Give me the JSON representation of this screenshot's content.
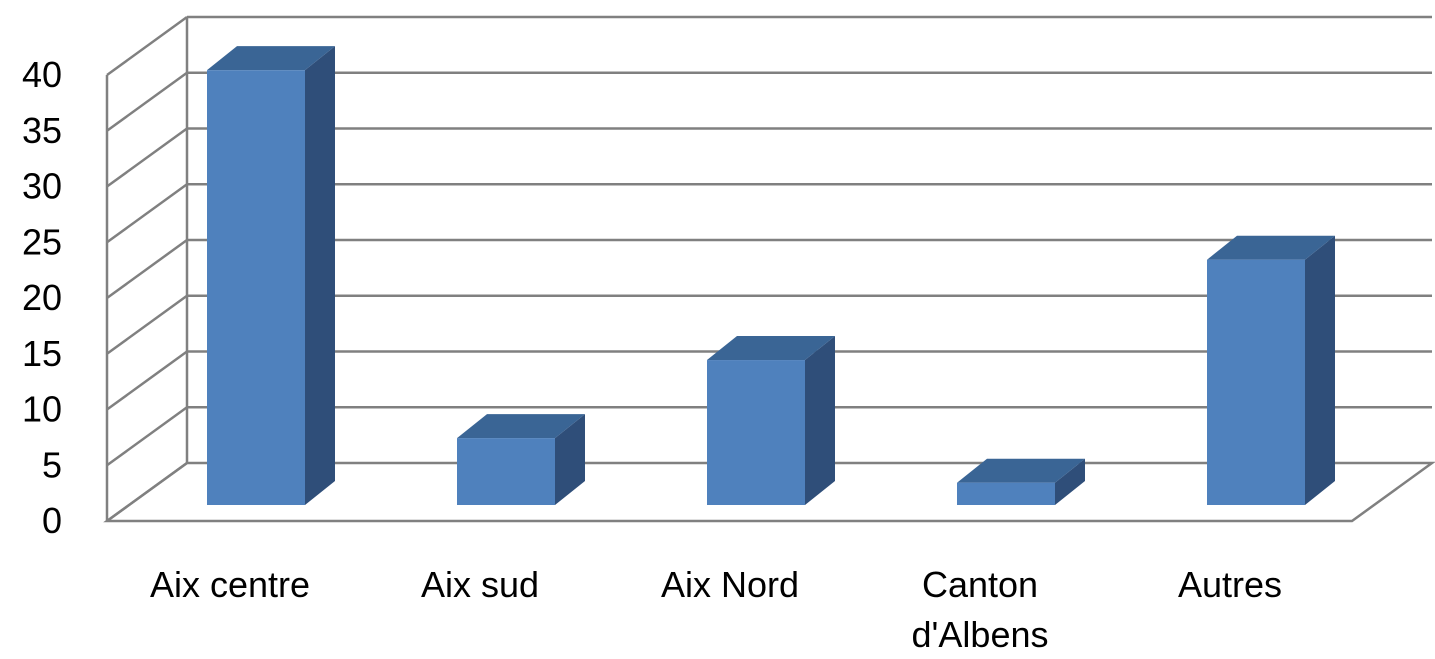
{
  "chart_data": {
    "type": "bar",
    "style": "3d-column",
    "categories": [
      "Aix centre",
      "Aix sud",
      "Aix Nord",
      "Canton d'Albens",
      "Autres"
    ],
    "category_lines": [
      [
        "Aix centre"
      ],
      [
        "Aix sud"
      ],
      [
        "Aix Nord"
      ],
      [
        "Canton",
        "d'Albens"
      ],
      [
        "Autres"
      ]
    ],
    "values": [
      39,
      6,
      13,
      2,
      22
    ],
    "title": "",
    "xlabel": "",
    "ylabel": "",
    "ylim": [
      0,
      40
    ],
    "yticks": [
      "0",
      "5",
      "10",
      "15",
      "20",
      "25",
      "30",
      "35",
      "40"
    ],
    "grid": true,
    "legend": "none",
    "colors": {
      "bar_front": "#4F81BD",
      "bar_top": "#3A6595",
      "bar_side": "#2F4E79",
      "grid": "#808080"
    }
  }
}
